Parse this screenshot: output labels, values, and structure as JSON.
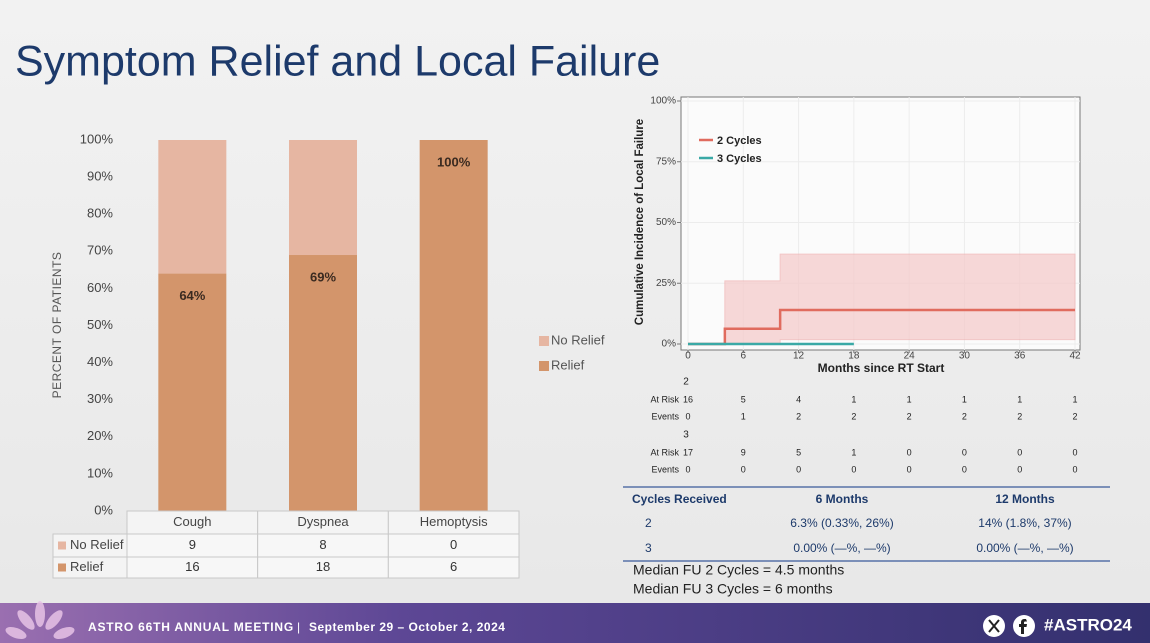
{
  "title": "Symptom Relief and Local Failure",
  "chart_data": [
    {
      "type": "stacked_bar",
      "y_label": "PERCENT OF PATIENTS",
      "categories": [
        "Cough",
        "Dyspnea",
        "Hemoptysis"
      ],
      "series": [
        {
          "name": "No Relief",
          "color": "#e6b6a2",
          "values": [
            36,
            31,
            0
          ]
        },
        {
          "name": "Relief",
          "color": "#d3956b",
          "values": [
            64,
            69,
            100
          ],
          "value_labels": [
            "64%",
            "69%",
            "100%"
          ]
        }
      ],
      "ylim": [
        0,
        100
      ],
      "yticks": [
        {
          "value": 0,
          "label": "0%"
        },
        {
          "value": 10,
          "label": "10%"
        },
        {
          "value": 20,
          "label": "20%"
        },
        {
          "value": 30,
          "label": "30%"
        },
        {
          "value": 40,
          "label": "40%"
        },
        {
          "value": 50,
          "label": "50%"
        },
        {
          "value": 60,
          "label": "60%"
        },
        {
          "value": 70,
          "label": "70%"
        },
        {
          "value": 80,
          "label": "80%"
        },
        {
          "value": 90,
          "label": "90%"
        },
        {
          "value": 100,
          "label": "100%"
        }
      ],
      "grid": false,
      "legend": "right",
      "table": {
        "rows": [
          {
            "name": "No Relief",
            "values": [
              9,
              8,
              0
            ]
          },
          {
            "name": "Relief",
            "values": [
              16,
              18,
              6
            ]
          }
        ]
      }
    },
    {
      "type": "line",
      "x_label": "Months since RT Start",
      "y_label": "Cumulative Incidence of Local Failure",
      "series": [
        {
          "name": "2 Cycles",
          "color": "#e06b5e",
          "band_color": "#f5c9c9",
          "x": [
            0,
            4,
            4,
            10,
            10,
            42
          ],
          "values": [
            0,
            0,
            6.3,
            6.3,
            14,
            14
          ],
          "band_lower": [
            0,
            0,
            0.33,
            0.33,
            1.8,
            1.8
          ],
          "band_upper": [
            0,
            0,
            26,
            26,
            37,
            37
          ]
        },
        {
          "name": "3 Cycles",
          "color": "#3aa9a6",
          "x": [
            0,
            18
          ],
          "values": [
            0,
            0
          ]
        }
      ],
      "xlim": [
        0,
        42
      ],
      "xticks": [
        0,
        6,
        12,
        18,
        24,
        30,
        36,
        42
      ],
      "ylim": [
        0,
        100
      ],
      "yticks": [
        {
          "value": 0,
          "label": "0%"
        },
        {
          "value": 25,
          "label": "25%"
        },
        {
          "value": 50,
          "label": "50%"
        },
        {
          "value": 75,
          "label": "75%"
        },
        {
          "value": 100,
          "label": "100%"
        }
      ],
      "grid": true,
      "legend": "upper left",
      "risk_table": {
        "groups": [
          {
            "name": "2",
            "rows": [
              {
                "name": "At Risk",
                "values": [
                  16,
                  5,
                  4,
                  1,
                  1,
                  1,
                  1,
                  1
                ]
              },
              {
                "name": "Events",
                "values": [
                  0,
                  1,
                  2,
                  2,
                  2,
                  2,
                  2,
                  2
                ]
              }
            ]
          },
          {
            "name": "3",
            "rows": [
              {
                "name": "At Risk",
                "values": [
                  17,
                  9,
                  5,
                  1,
                  0,
                  0,
                  0,
                  0
                ]
              },
              {
                "name": "Events",
                "values": [
                  0,
                  0,
                  0,
                  0,
                  0,
                  0,
                  0,
                  0
                ]
              }
            ]
          }
        ]
      }
    }
  ],
  "table": {
    "header": [
      "Cycles Received",
      "6 Months",
      "12 Months"
    ],
    "rows": [
      [
        "2",
        "6.3% (0.33%, 26%)",
        "14% (1.8%, 37%)"
      ],
      [
        "3",
        "0.00% (—%, —%)",
        "0.00% (—%, —%)"
      ]
    ]
  },
  "notes": [
    "Median FU 2 Cycles = 4.5 months",
    "Median FU 3 Cycles = 6 months"
  ],
  "footer": {
    "meeting": "ASTRO 66TH ANNUAL MEETING",
    "separator": "|",
    "dates": "September 29 – October 2, 2024",
    "hashtag": "#ASTRO24"
  }
}
